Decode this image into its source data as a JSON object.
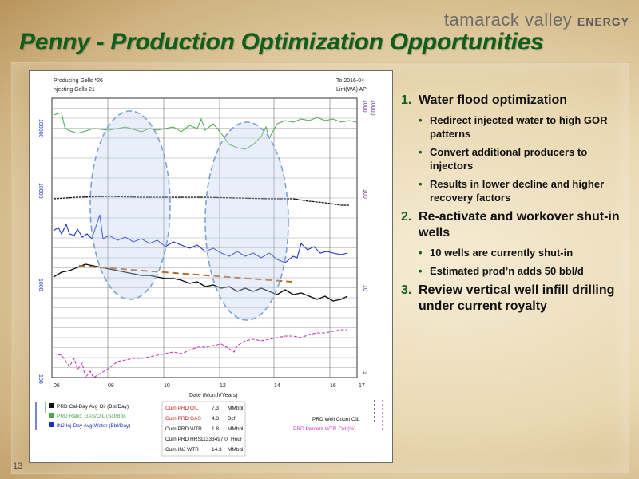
{
  "brand": {
    "name": "tamarack valley",
    "suffix": "ENERGY"
  },
  "title": "Penny - Production Optimization Opportunities",
  "page_number": "13",
  "bullets": [
    {
      "num": "1.",
      "text": "Water flood optimization",
      "sub": [
        "Redirect injected water to high GOR patterns",
        "Convert additional producers to injectors",
        "Results in lower decline and higher recovery factors"
      ]
    },
    {
      "num": "2.",
      "text": "Re-activate and workover shut-in wells",
      "sub": [
        "10 wells are currently shut-in",
        "Estimated prod’n adds 50 bbl/d"
      ]
    },
    {
      "num": "3.",
      "text": "Review vertical well infill drilling under current royalty",
      "sub": []
    }
  ],
  "chart": {
    "header_left_1": "Producing Gells  *26",
    "header_left_2": "njecting Gells  21",
    "header_right_1": "To  2016-04",
    "header_right_2": "Lirit(WA) AP",
    "xlabel": "Date (Month/Years)",
    "xticks": [
      "06",
      "08",
      "10",
      "12",
      "14",
      "16",
      "17"
    ],
    "left_ticks": [
      "100000",
      "10000",
      "1000",
      "100"
    ],
    "right_ticks_a": [
      "1000",
      "100",
      "10",
      "1"
    ],
    "right_ticks_b": [
      "10000",
      "1000",
      "10"
    ],
    "legend_left": [
      "PRD Cal-Day Avg Oil  (Bbl/Day)",
      "PRD Ratio: GAS/OIL (Scf/Bbl)",
      "INJ Inj-Day Avg Water (Bbl/Day)"
    ],
    "cum_table": [
      [
        "Cum PRD OIL",
        "7.3",
        "MMbbl"
      ],
      [
        "Cum PRD GAS",
        "4.3",
        "Bcf"
      ],
      [
        "Cum PRD WTR",
        "1.8",
        "MMbbl"
      ],
      [
        "Cum PRD HRS",
        "11333497.0",
        "Hour"
      ],
      [
        "Cum INJ WTR",
        "14.3",
        "MMbbl"
      ]
    ],
    "legend_right": [
      "PRD Well Count OIL",
      "PRD Percent WTR Cut (%)"
    ],
    "colors": {
      "gor": "#4aa84a",
      "gas": "#111111",
      "inj": "#1f2fc4",
      "oil": "#111111",
      "trend": "#b8682a",
      "wcut": "#c63bc6",
      "ellipse": "#7aa2d8"
    }
  },
  "chart_data": {
    "type": "line",
    "title": "",
    "xlabel": "Date (Month/Years)",
    "ylabel": "",
    "y_scale": "log",
    "x": [
      "06",
      "08",
      "10",
      "12",
      "14",
      "16",
      "17"
    ],
    "series": [
      {
        "name": "PRD Ratio: GAS/OIL (Scf/Bbl)",
        "color": "#4aa84a",
        "values": [
          45000,
          32000,
          30000,
          32000,
          28000,
          40000,
          45000
        ]
      },
      {
        "name": "PRD Cal-Day Avg Oil  (Bbl/Day)",
        "color": "#111111",
        "values": [
          1100,
          1250,
          1050,
          950,
          850,
          720,
          680
        ]
      },
      {
        "name": "INJ Inj-Day Avg Water (Bbl/Day)",
        "color": "#1f2fc4",
        "values": [
          2600,
          2800,
          2500,
          2200,
          2100,
          2000,
          1900
        ]
      },
      {
        "name": "PRD Percent WTR Cut (%)",
        "color": "#c63bc6",
        "values": [
          2,
          3,
          4,
          5,
          6,
          7,
          8
        ]
      }
    ]
  }
}
